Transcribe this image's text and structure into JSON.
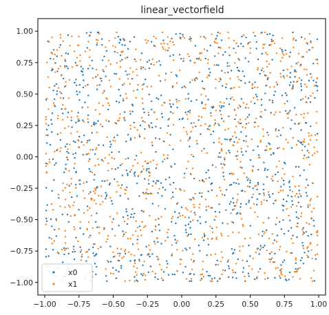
{
  "chart_data": {
    "type": "scatter",
    "title": "linear_vectorfield",
    "xlabel": "",
    "ylabel": "",
    "xlim": [
      -1.05,
      1.05
    ],
    "ylim": [
      -1.1,
      1.1
    ],
    "x_ticks": [
      -1.0,
      -0.75,
      -0.5,
      -0.25,
      0.0,
      0.25,
      0.5,
      0.75,
      1.0
    ],
    "x_tick_labels": [
      "−1.00",
      "−0.75",
      "−0.50",
      "−0.25",
      "0.00",
      "0.25",
      "0.50",
      "0.75",
      "1.00"
    ],
    "y_ticks": [
      1.0,
      0.75,
      0.5,
      0.25,
      0.0,
      -0.25,
      -0.5,
      -0.75,
      -1.0
    ],
    "y_tick_labels": [
      "1.00",
      "0.75",
      "0.50",
      "0.25",
      "0.00",
      "−0.25",
      "−0.50",
      "−0.75",
      "−1.00"
    ],
    "grid": false,
    "legend_position": "bottom-left",
    "series": [
      {
        "name": "x0",
        "color": "#1f77b4",
        "points_count": 1000,
        "pattern": "uniform scatter over [-1,1]x[-1,1] with radial swirl toward center"
      },
      {
        "name": "x1",
        "color": "#ff7f0e",
        "points_count": 1000,
        "pattern": "uniform scatter over [-1,1]x[-1,1] with radial swirl toward center"
      }
    ]
  }
}
